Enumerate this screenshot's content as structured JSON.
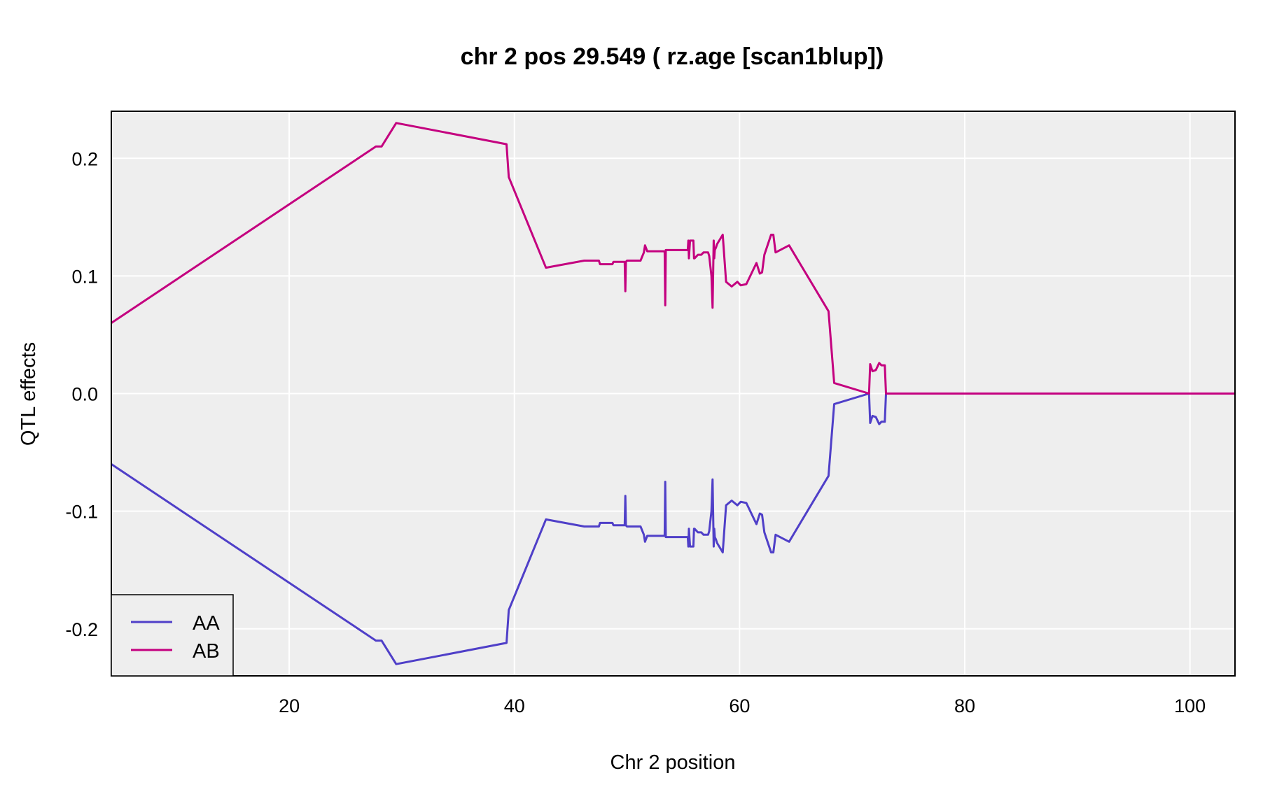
{
  "chart_data": {
    "type": "line",
    "title": "chr 2 pos 29.549 ( rz.age  [scan1blup])",
    "xlabel": "Chr 2 position",
    "ylabel": "QTL effects",
    "xlim": [
      4.2,
      104
    ],
    "ylim": [
      -0.24,
      0.24
    ],
    "xticks": [
      20,
      40,
      60,
      80,
      100
    ],
    "xtick_labels": [
      "20",
      "40",
      "60",
      "80",
      "100"
    ],
    "yticks": [
      -0.2,
      -0.1,
      0.0,
      0.1,
      0.2
    ],
    "ytick_labels": [
      "-0.2",
      "-0.1",
      "0.0",
      "0.1",
      "0.2"
    ],
    "grid": true,
    "legend_position": "bottom-left",
    "colors": {
      "panel_bg": "#eeeeee",
      "grid": "#ffffff",
      "AA": "#4f3fc8",
      "AB": "#c4007f"
    },
    "x": [
      4.2,
      27.7,
      28.2,
      29.5,
      39.3,
      39.5,
      42.8,
      46.2,
      47.5,
      47.6,
      48.7,
      48.8,
      49.8,
      49.85,
      49.9,
      50.0,
      51.2,
      51.5,
      51.6,
      51.8,
      53.3,
      53.35,
      53.4,
      53.45,
      53.5,
      55.4,
      55.45,
      55.5,
      55.6,
      55.9,
      55.95,
      56.0,
      56.3,
      56.6,
      56.8,
      57.2,
      57.3,
      57.5,
      57.6,
      57.7,
      57.75,
      57.8,
      57.9,
      58.0,
      58.5,
      58.8,
      59.3,
      59.8,
      60.1,
      60.6,
      61.5,
      61.8,
      62.0,
      62.2,
      62.8,
      63.0,
      63.2,
      64.4,
      67.9,
      68.4,
      71.5,
      71.6,
      71.8,
      72.1,
      72.4,
      72.6,
      72.9,
      73.0,
      104
    ]
  },
  "series": [
    {
      "name": "AA",
      "values": [
        -0.06,
        -0.21,
        -0.21,
        -0.23,
        -0.212,
        -0.184,
        -0.107,
        -0.113,
        -0.113,
        -0.11,
        -0.11,
        -0.112,
        -0.112,
        -0.087,
        -0.112,
        -0.113,
        -0.113,
        -0.12,
        -0.126,
        -0.121,
        -0.121,
        -0.12,
        -0.075,
        -0.122,
        -0.122,
        -0.122,
        -0.13,
        -0.115,
        -0.13,
        -0.13,
        -0.115,
        -0.115,
        -0.118,
        -0.118,
        -0.12,
        -0.12,
        -0.117,
        -0.1,
        -0.073,
        -0.13,
        -0.115,
        -0.122,
        -0.124,
        -0.127,
        -0.135,
        -0.095,
        -0.091,
        -0.095,
        -0.092,
        -0.093,
        -0.111,
        -0.102,
        -0.103,
        -0.118,
        -0.135,
        -0.135,
        -0.12,
        -0.126,
        -0.07,
        -0.009,
        0.0,
        -0.025,
        -0.019,
        -0.02,
        -0.026,
        -0.024,
        -0.024,
        0.0,
        0.0
      ]
    },
    {
      "name": "AB",
      "values": [
        0.06,
        0.21,
        0.21,
        0.23,
        0.212,
        0.184,
        0.107,
        0.113,
        0.113,
        0.11,
        0.11,
        0.112,
        0.112,
        0.087,
        0.112,
        0.113,
        0.113,
        0.12,
        0.126,
        0.121,
        0.121,
        0.12,
        0.075,
        0.122,
        0.122,
        0.122,
        0.13,
        0.115,
        0.13,
        0.13,
        0.115,
        0.115,
        0.118,
        0.118,
        0.12,
        0.12,
        0.117,
        0.1,
        0.073,
        0.13,
        0.115,
        0.122,
        0.124,
        0.127,
        0.135,
        0.095,
        0.091,
        0.095,
        0.092,
        0.093,
        0.111,
        0.102,
        0.103,
        0.118,
        0.135,
        0.135,
        0.12,
        0.126,
        0.07,
        0.009,
        0.0,
        0.025,
        0.019,
        0.02,
        0.026,
        0.024,
        0.024,
        0.0,
        0.0
      ]
    }
  ]
}
